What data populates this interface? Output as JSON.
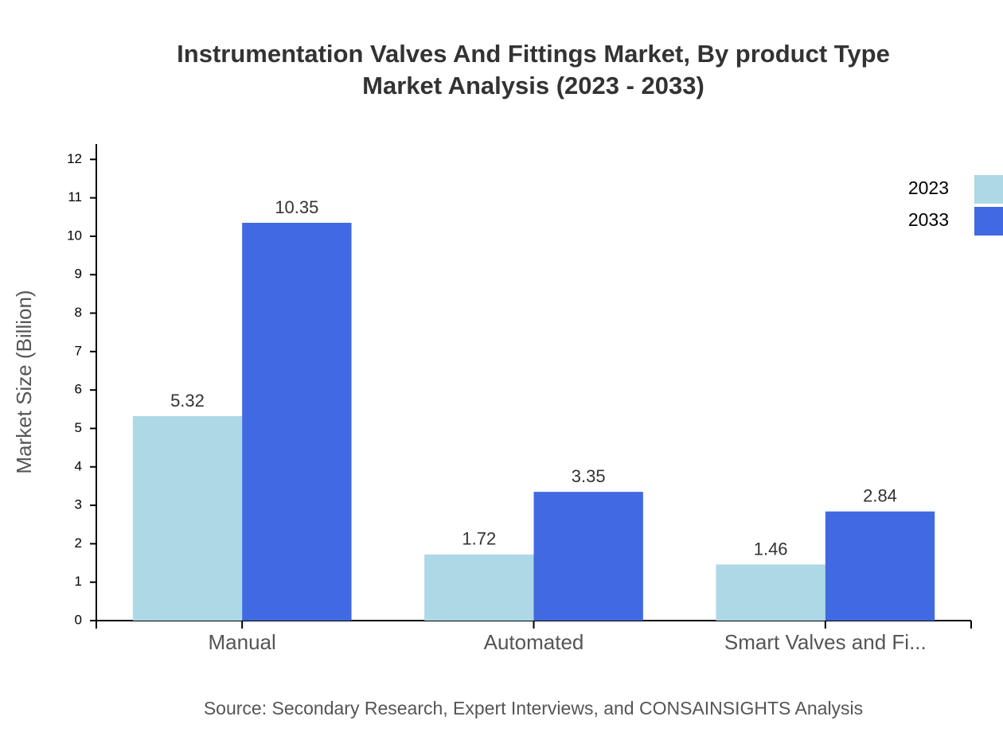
{
  "chart_data": {
    "type": "bar",
    "title": [
      "Instrumentation Valves And Fittings Market, By product Type",
      "Market Analysis (2023 - 2033)"
    ],
    "y_label": "Market Size (Billion)",
    "source": "Source: Secondary Research, Expert Interviews, and CONSAINSIGHTS Analysis",
    "categories": [
      "Manual",
      "Automated",
      "Smart Valves and Fi..."
    ],
    "series": [
      {
        "name": "2023",
        "color": "#add8e6",
        "values": [
          5.32,
          1.72,
          1.46
        ]
      },
      {
        "name": "2033",
        "color": "#4169e1",
        "values": [
          10.35,
          3.35,
          2.84
        ]
      }
    ],
    "ylim": [
      0,
      12.4
    ],
    "yticks": [
      0,
      1,
      2,
      3,
      4,
      5,
      6,
      7,
      8,
      9,
      10,
      11,
      12
    ],
    "legend": "top-right"
  }
}
